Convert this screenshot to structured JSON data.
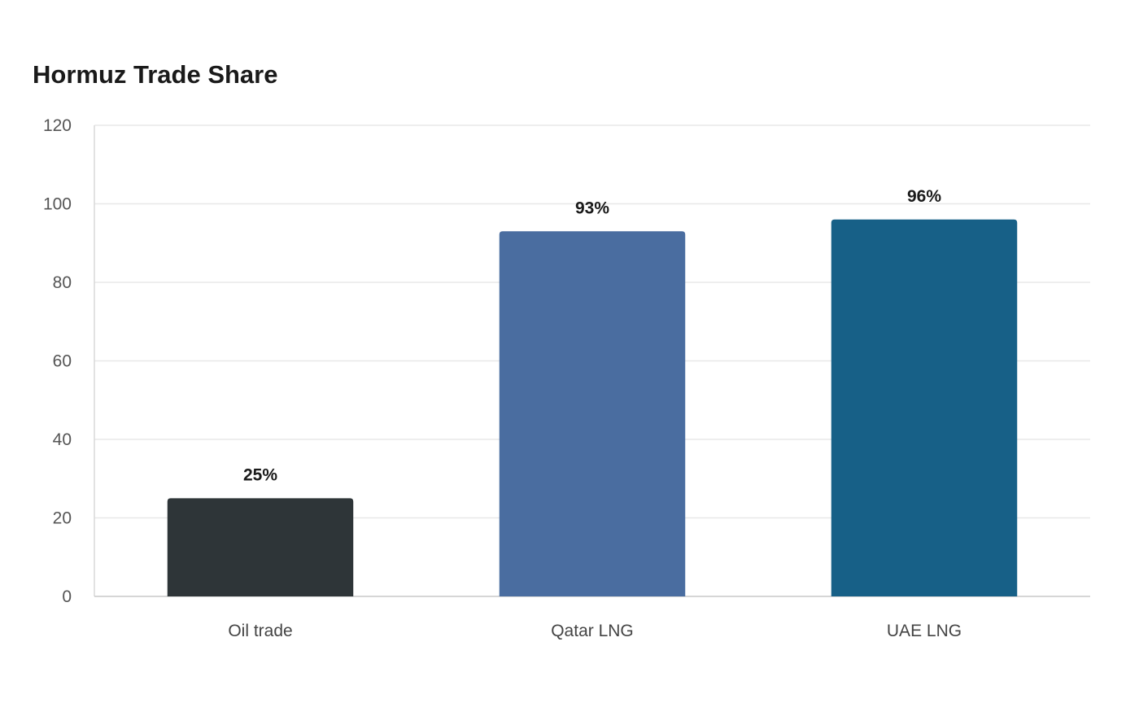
{
  "chart_data": {
    "type": "bar",
    "title": "Hormuz Trade Share",
    "categories": [
      "Oil trade",
      "Qatar LNG",
      "UAE LNG"
    ],
    "values": [
      25,
      93,
      96
    ],
    "data_labels": [
      "25%",
      "93%",
      "96%"
    ],
    "colors": [
      "#2e3538",
      "#4a6da0",
      "#176087"
    ],
    "ylim": [
      0,
      120
    ],
    "yticks": [
      0,
      20,
      40,
      60,
      80,
      100,
      120
    ],
    "grid": true,
    "legend": false,
    "xlabel": "",
    "ylabel": ""
  }
}
